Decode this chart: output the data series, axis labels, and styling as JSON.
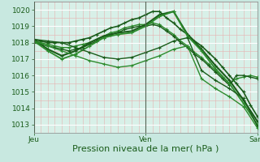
{
  "bg_color": "#c8e8e0",
  "plot_bg_color": "#d8f0e8",
  "grid_color_major": "#ffffff",
  "grid_color_minor": "#e8b0b0",
  "line_color_dark": "#1a5c1a",
  "line_color_mid": "#2d8b2d",
  "xlabel": "Pression niveau de la mer( hPa )",
  "xlabel_fontsize": 8,
  "xtick_labels": [
    "Jeu",
    "Ven",
    "Sam"
  ],
  "xtick_positions": [
    0,
    48,
    96
  ],
  "ytick_positions": [
    1013,
    1014,
    1015,
    1016,
    1017,
    1018,
    1019,
    1020
  ],
  "ylim": [
    1012.5,
    1020.5
  ],
  "xlim": [
    0,
    96
  ],
  "vlines": [
    0,
    48,
    96
  ],
  "series": [
    {
      "x": [
        0,
        3,
        6,
        9,
        12,
        15,
        18,
        21,
        24,
        27,
        30,
        33,
        36,
        39,
        42,
        45,
        48,
        51,
        54,
        57,
        60,
        63,
        66,
        69,
        72,
        75,
        78,
        81,
        84,
        87,
        90,
        93,
        96
      ],
      "y": [
        1018.2,
        1018.1,
        1018.0,
        1018.0,
        1018.0,
        1018.0,
        1018.1,
        1018.2,
        1018.3,
        1018.5,
        1018.7,
        1018.9,
        1019.0,
        1019.2,
        1019.4,
        1019.5,
        1019.7,
        1019.9,
        1019.9,
        1019.5,
        1019.2,
        1018.8,
        1018.5,
        1018.1,
        1017.8,
        1017.4,
        1017.0,
        1016.5,
        1016.0,
        1015.5,
        1015.0,
        1014.2,
        1013.5
      ],
      "marker": "+",
      "color": "#1a5c1a",
      "lw": 1.2,
      "ms": 3
    },
    {
      "x": [
        0,
        3,
        6,
        9,
        12,
        15,
        18,
        21,
        24,
        27,
        30,
        33,
        36,
        39,
        42,
        45,
        48,
        51,
        54,
        57,
        60,
        63,
        66,
        69,
        72,
        75,
        78,
        81,
        84,
        87,
        90,
        93,
        96
      ],
      "y": [
        1018.1,
        1018.0,
        1017.9,
        1017.8,
        1017.7,
        1017.7,
        1017.8,
        1017.9,
        1018.0,
        1018.2,
        1018.4,
        1018.6,
        1018.7,
        1018.9,
        1019.0,
        1019.1,
        1019.1,
        1019.2,
        1019.1,
        1018.8,
        1018.5,
        1018.1,
        1017.8,
        1017.4,
        1017.1,
        1016.7,
        1016.3,
        1015.9,
        1015.5,
        1015.8,
        1015.9,
        1016.0,
        1015.9
      ],
      "marker": "+",
      "color": "#2d8b2d",
      "lw": 1.0,
      "ms": 3
    },
    {
      "x": [
        0,
        3,
        6,
        9,
        12,
        15,
        18,
        21,
        24,
        27,
        30,
        33,
        36,
        39,
        42,
        45,
        48,
        51,
        54,
        57,
        60,
        63,
        66,
        69,
        72,
        75,
        78,
        81,
        84,
        87,
        90,
        93,
        96
      ],
      "y": [
        1018.0,
        1017.9,
        1017.8,
        1017.7,
        1017.6,
        1017.5,
        1017.6,
        1017.7,
        1017.9,
        1018.1,
        1018.3,
        1018.5,
        1018.6,
        1018.8,
        1018.9,
        1019.0,
        1019.0,
        1019.1,
        1019.0,
        1018.7,
        1018.4,
        1018.0,
        1017.7,
        1017.3,
        1017.0,
        1016.6,
        1016.2,
        1015.8,
        1015.4,
        1016.0,
        1016.0,
        1015.9,
        1015.8
      ],
      "marker": "+",
      "color": "#1a5c1a",
      "lw": 1.0,
      "ms": 3
    },
    {
      "x": [
        0,
        6,
        12,
        18,
        24,
        30,
        36,
        42,
        48,
        54,
        60,
        66,
        72,
        78,
        84,
        90,
        96
      ],
      "y": [
        1018.2,
        1017.6,
        1017.2,
        1017.5,
        1018.0,
        1018.4,
        1018.6,
        1018.7,
        1019.1,
        1019.7,
        1019.9,
        1018.5,
        1017.6,
        1016.6,
        1015.7,
        1014.5,
        1013.2
      ],
      "marker": "+",
      "color": "#1a5c1a",
      "lw": 1.5,
      "ms": 3
    },
    {
      "x": [
        0,
        6,
        12,
        18,
        24,
        30,
        36,
        42,
        48,
        54,
        60,
        66,
        72,
        78,
        84,
        90,
        96
      ],
      "y": [
        1018.1,
        1017.5,
        1017.0,
        1017.3,
        1017.8,
        1018.3,
        1018.5,
        1018.6,
        1019.0,
        1019.6,
        1019.9,
        1018.4,
        1017.5,
        1016.4,
        1015.5,
        1014.3,
        1013.0
      ],
      "marker": "+",
      "color": "#2d8b2d",
      "lw": 1.3,
      "ms": 3
    },
    {
      "x": [
        0,
        6,
        12,
        18,
        24,
        30,
        36,
        42,
        48,
        54,
        60,
        66,
        72,
        78,
        84,
        90,
        96
      ],
      "y": [
        1018.2,
        1018.1,
        1018.0,
        1017.7,
        1017.4,
        1017.1,
        1017.0,
        1017.1,
        1017.4,
        1017.7,
        1018.1,
        1018.3,
        1016.3,
        1015.7,
        1015.2,
        1014.6,
        1012.9
      ],
      "marker": "+",
      "color": "#1a5c1a",
      "lw": 1.0,
      "ms": 3
    },
    {
      "x": [
        0,
        6,
        12,
        18,
        24,
        30,
        36,
        42,
        48,
        54,
        60,
        66,
        72,
        78,
        84,
        90,
        96
      ],
      "y": [
        1018.1,
        1017.8,
        1017.5,
        1017.2,
        1016.9,
        1016.7,
        1016.5,
        1016.6,
        1016.9,
        1017.2,
        1017.6,
        1017.8,
        1015.8,
        1015.2,
        1014.7,
        1014.1,
        1012.8
      ],
      "marker": "+",
      "color": "#2d8b2d",
      "lw": 1.0,
      "ms": 3
    }
  ]
}
